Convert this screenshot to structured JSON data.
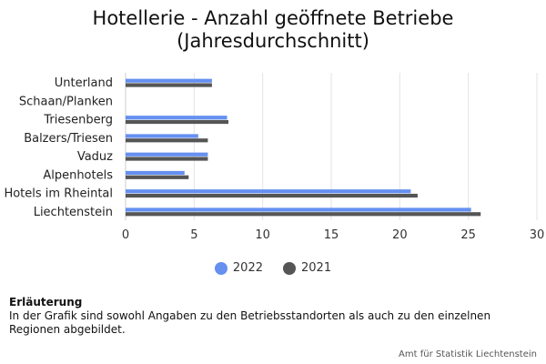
{
  "chart_data": {
    "type": "bar",
    "orientation": "horizontal",
    "title": "Hotellerie - Anzahl geöffnete Betriebe",
    "subtitle": "(Jahresdurchschnitt)",
    "categories": [
      "Unterland",
      "Schaan/Planken",
      "Triesenberg",
      "Balzers/Triesen",
      "Vaduz",
      "Alpenhotels",
      "Hotels im Rheintal",
      "Liechtenstein"
    ],
    "series": [
      {
        "name": "2022",
        "color": "#6590F0",
        "values": [
          6.3,
          null,
          7.4,
          5.3,
          6.0,
          4.3,
          20.8,
          25.2
        ]
      },
      {
        "name": "2021",
        "color": "#555555",
        "values": [
          6.3,
          null,
          7.5,
          6.0,
          6.0,
          4.6,
          21.3,
          25.9
        ]
      }
    ],
    "xlim": [
      0,
      30
    ],
    "xticks": [
      0,
      5,
      10,
      15,
      20,
      25,
      30
    ],
    "grid": true,
    "legend_position": "bottom"
  },
  "note": {
    "heading": "Erläuterung",
    "text": "In der Grafik sind sowohl Angaben zu den Betriebsstandorten als auch zu den einzelnen Regionen abgebildet."
  },
  "source": "Amt für Statistik Liechtenstein"
}
